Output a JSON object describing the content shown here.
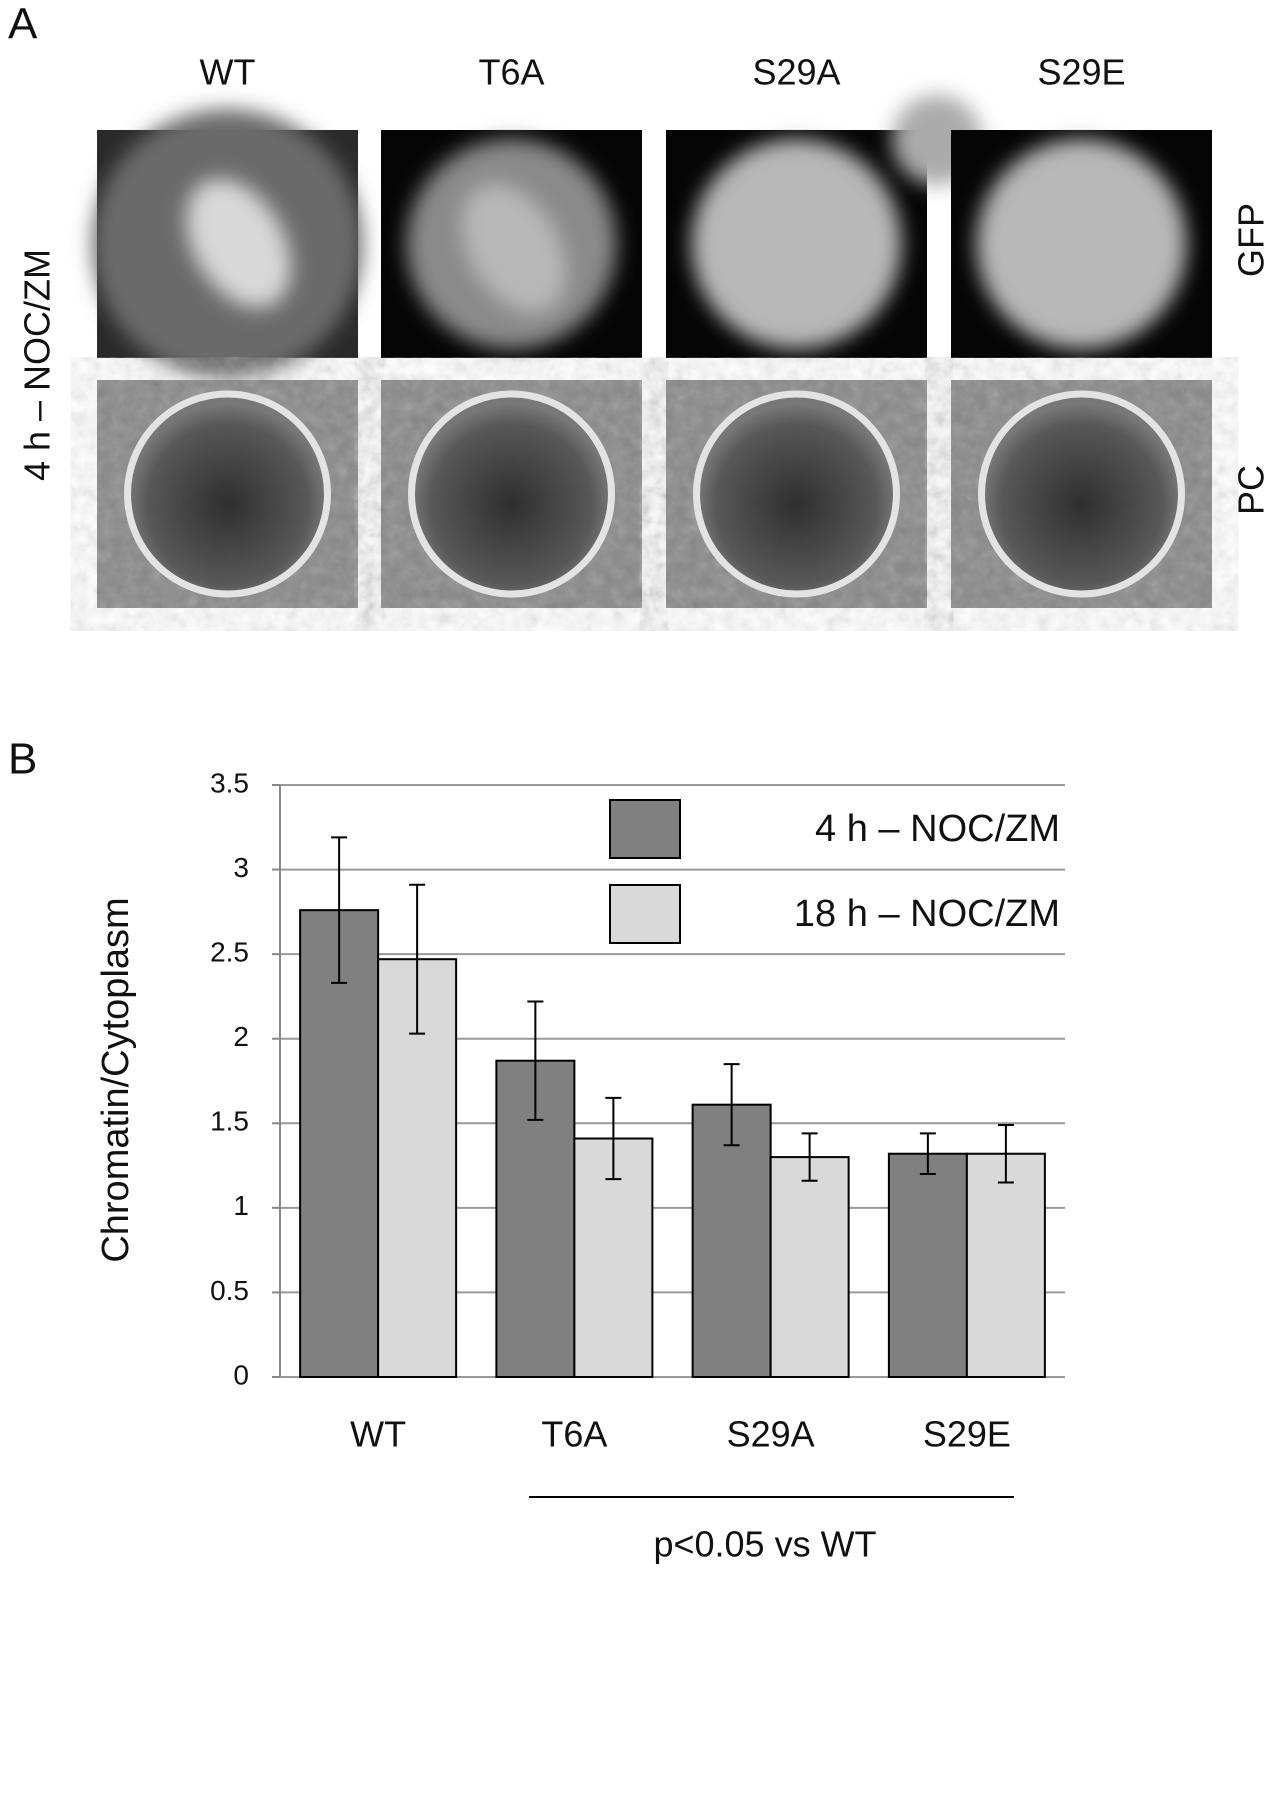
{
  "panel_a": {
    "label": "A",
    "columns": [
      "WT",
      "T6A",
      "S29A",
      "S29E"
    ],
    "row_label": "4 h – NOC/ZM",
    "channels": [
      "GFP",
      "PC"
    ]
  },
  "chart_data": {
    "type": "bar",
    "panel_label": "B",
    "y_label": "Chromatin/Cytoplasm",
    "categories": [
      "WT",
      "T6A",
      "S29A",
      "S29E"
    ],
    "series": [
      {
        "name": "4 h – NOC/ZM",
        "color": "#808080",
        "values": [
          2.76,
          1.87,
          1.61,
          1.32
        ],
        "errors": [
          0.43,
          0.35,
          0.24,
          0.12
        ]
      },
      {
        "name": "18 h – NOC/ZM",
        "color": "#d9d9d9",
        "values": [
          2.47,
          1.41,
          1.3,
          1.32
        ],
        "errors": [
          0.44,
          0.24,
          0.14,
          0.17
        ]
      }
    ],
    "ylim": [
      0,
      3.5
    ],
    "yticks": [
      0,
      0.5,
      1,
      1.5,
      2,
      2.5,
      3,
      3.5
    ],
    "grid": true,
    "legend": "upper right",
    "annotation": "p<0.05 vs WT"
  }
}
